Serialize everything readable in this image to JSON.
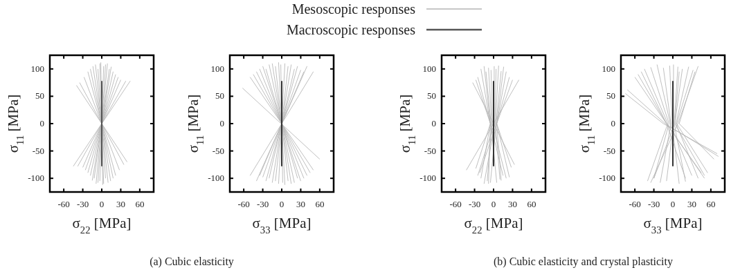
{
  "chart_data": [
    {
      "type": "line",
      "xlabel": "σ$_{22}$ [MPa]",
      "ylabel": "σ$_{11}$ [MPa]",
      "xlim": [
        -82,
        82
      ],
      "ylim": [
        -125,
        125
      ],
      "xticks": [
        -60,
        -30,
        0,
        30,
        60
      ],
      "yticks": [
        -100,
        -50,
        0,
        50,
        100
      ],
      "grid": false,
      "legend": "top",
      "annotations": [
        "(a) Cubic elasticity"
      ],
      "series": [
        {
          "name": "Mesoscopic responses",
          "color": "#b4b4b4",
          "x": [
            35,
            -35
          ],
          "values": [
            -75,
            75
          ]
        },
        {
          "color": "#b4b4b4",
          "x": [
            28,
            -28
          ],
          "values": [
            -85,
            85
          ]
        },
        {
          "color": "#b4b4b4",
          "x": [
            22,
            -22
          ],
          "values": [
            -95,
            95
          ]
        },
        {
          "color": "#b4b4b4",
          "x": [
            18,
            -18
          ],
          "values": [
            -100,
            100
          ]
        },
        {
          "color": "#b4b4b4",
          "x": [
            14,
            -14
          ],
          "values": [
            -105,
            105
          ]
        },
        {
          "color": "#b4b4b4",
          "x": [
            10,
            -10
          ],
          "values": [
            -108,
            108
          ]
        },
        {
          "color": "#b4b4b4",
          "x": [
            6,
            -6
          ],
          "values": [
            -100,
            100
          ]
        },
        {
          "color": "#b4b4b4",
          "x": [
            3,
            -3
          ],
          "values": [
            -110,
            110
          ]
        },
        {
          "color": "#b4b4b4",
          "x": [
            1.5,
            -1.5
          ],
          "values": [
            -112,
            112
          ]
        },
        {
          "color": "#b4b4b4",
          "x": [
            -3,
            3
          ],
          "values": [
            -105,
            105
          ]
        },
        {
          "color": "#b4b4b4",
          "x": [
            -6,
            6
          ],
          "values": [
            -108,
            108
          ]
        },
        {
          "color": "#b4b4b4",
          "x": [
            -9,
            9
          ],
          "values": [
            -110,
            110
          ]
        },
        {
          "color": "#b4b4b4",
          "x": [
            -12,
            12
          ],
          "values": [
            -100,
            100
          ]
        },
        {
          "color": "#b4b4b4",
          "x": [
            -15,
            15
          ],
          "values": [
            -104,
            104
          ]
        },
        {
          "color": "#b4b4b4",
          "x": [
            -18,
            18
          ],
          "values": [
            -95,
            95
          ]
        },
        {
          "color": "#b4b4b4",
          "x": [
            -22,
            22
          ],
          "values": [
            -90,
            90
          ]
        },
        {
          "color": "#b4b4b4",
          "x": [
            -26,
            26
          ],
          "values": [
            -85,
            85
          ]
        },
        {
          "color": "#b4b4b4",
          "x": [
            -30,
            30
          ],
          "values": [
            -80,
            80
          ]
        },
        {
          "color": "#b4b4b4",
          "x": [
            -38,
            38
          ],
          "values": [
            -78,
            78
          ]
        },
        {
          "color": "#b4b4b4",
          "x": [
            -45,
            45
          ],
          "values": [
            -78,
            78
          ]
        },
        {
          "color": "#b4b4b4",
          "x": [
            40,
            -40
          ],
          "values": [
            -70,
            70
          ]
        },
        {
          "name": "Macroscopic responses",
          "color": "#555555",
          "x": [
            0,
            0
          ],
          "values": [
            -78,
            78
          ]
        }
      ]
    },
    {
      "type": "line",
      "xlabel": "σ$_{33}$ [MPa]",
      "ylabel": "σ$_{11}$ [MPa]",
      "xlim": [
        -82,
        82
      ],
      "ylim": [
        -125,
        125
      ],
      "xticks": [
        -60,
        -30,
        0,
        30,
        60
      ],
      "yticks": [
        -100,
        -50,
        0,
        50,
        100
      ],
      "grid": false,
      "legend": false,
      "series": [
        {
          "color": "#b4b4b4",
          "x": [
            -62,
            60
          ],
          "values": [
            65,
            -65
          ]
        },
        {
          "color": "#b4b4b4",
          "x": [
            -50,
            50
          ],
          "values": [
            85,
            -85
          ]
        },
        {
          "color": "#b4b4b4",
          "x": [
            -45,
            45
          ],
          "values": [
            90,
            -90
          ]
        },
        {
          "color": "#b4b4b4",
          "x": [
            -40,
            40
          ],
          "values": [
            95,
            -95
          ]
        },
        {
          "color": "#b4b4b4",
          "x": [
            -35,
            35
          ],
          "values": [
            100,
            -100
          ]
        },
        {
          "color": "#b4b4b4",
          "x": [
            -30,
            30
          ],
          "values": [
            105,
            -105
          ]
        },
        {
          "color": "#b4b4b4",
          "x": [
            -25,
            25
          ],
          "values": [
            100,
            -100
          ]
        },
        {
          "color": "#b4b4b4",
          "x": [
            -20,
            20
          ],
          "values": [
            108,
            -108
          ]
        },
        {
          "color": "#b4b4b4",
          "x": [
            -15,
            15
          ],
          "values": [
            110,
            -110
          ]
        },
        {
          "color": "#b4b4b4",
          "x": [
            -10,
            10
          ],
          "values": [
            105,
            -105
          ]
        },
        {
          "color": "#b4b4b4",
          "x": [
            -5,
            5
          ],
          "values": [
            112,
            -112
          ]
        },
        {
          "color": "#b4b4b4",
          "x": [
            -1.5,
            1.5
          ],
          "values": [
            108,
            -108
          ]
        },
        {
          "color": "#b4b4b4",
          "x": [
            5,
            -5
          ],
          "values": [
            110,
            -110
          ]
        },
        {
          "color": "#b4b4b4",
          "x": [
            10,
            -10
          ],
          "values": [
            105,
            -105
          ]
        },
        {
          "color": "#b4b4b4",
          "x": [
            15,
            -15
          ],
          "values": [
            108,
            -108
          ]
        },
        {
          "color": "#b4b4b4",
          "x": [
            20,
            -20
          ],
          "values": [
            100,
            -100
          ]
        },
        {
          "color": "#b4b4b4",
          "x": [
            25,
            -25
          ],
          "values": [
            105,
            -105
          ]
        },
        {
          "color": "#b4b4b4",
          "x": [
            30,
            -30
          ],
          "values": [
            98,
            -98
          ]
        },
        {
          "color": "#b4b4b4",
          "x": [
            35,
            -35
          ],
          "values": [
            95,
            -95
          ]
        },
        {
          "color": "#b4b4b4",
          "x": [
            40,
            -40
          ],
          "values": [
            105,
            -105
          ]
        },
        {
          "color": "#b4b4b4",
          "x": [
            50,
            -50
          ],
          "values": [
            95,
            -95
          ]
        },
        {
          "color": "#333333",
          "x": [
            0,
            0
          ],
          "values": [
            -78,
            78
          ]
        }
      ]
    },
    {
      "type": "line",
      "xlabel": "σ$_{22}$ [MPa]",
      "ylabel": "σ$_{11}$ [MPa]",
      "xlim": [
        -82,
        82
      ],
      "ylim": [
        -125,
        125
      ],
      "xticks": [
        -60,
        -30,
        0,
        30,
        60
      ],
      "yticks": [
        -100,
        -50,
        0,
        50,
        100
      ],
      "grid": false,
      "legend": false,
      "annotations": [
        "(b) Cubic elasticity and crystal plasticity"
      ],
      "series": [
        {
          "color": "#b4b4b4",
          "x": [
            -33,
            0,
            33
          ],
          "values": [
            75,
            0,
            -75
          ]
        },
        {
          "color": "#b4b4b4",
          "x": [
            40,
            0,
            -43
          ],
          "values": [
            80,
            0,
            -85
          ]
        },
        {
          "color": "#b4b4b4",
          "x": [
            -20,
            -5,
            15
          ],
          "values": [
            100,
            0,
            -95
          ]
        },
        {
          "color": "#b4b4b4",
          "x": [
            -15,
            -5,
            -20
          ],
          "values": [
            105,
            0,
            -100
          ]
        },
        {
          "color": "#b4b4b4",
          "x": [
            -12,
            -4,
            5
          ],
          "values": [
            95,
            0,
            -108
          ]
        },
        {
          "color": "#b4b4b4",
          "x": [
            -8,
            -3,
            -10
          ],
          "values": [
            102,
            0,
            -105
          ]
        },
        {
          "color": "#b4b4b4",
          "x": [
            -4,
            -2,
            20
          ],
          "values": [
            98,
            0,
            -100
          ]
        },
        {
          "color": "#b4b4b4",
          "x": [
            1,
            1,
            -25
          ],
          "values": [
            105,
            0,
            -95
          ]
        },
        {
          "color": "#b4b4b4",
          "x": [
            4,
            2,
            -15
          ],
          "values": [
            100,
            0,
            -110
          ]
        },
        {
          "color": "#b4b4b4",
          "x": [
            8,
            3,
            10
          ],
          "values": [
            106,
            0,
            -102
          ]
        },
        {
          "color": "#b4b4b4",
          "x": [
            12,
            4,
            -5
          ],
          "values": [
            96,
            0,
            -108
          ]
        },
        {
          "color": "#b4b4b4",
          "x": [
            16,
            5,
            25
          ],
          "values": [
            104,
            0,
            -98
          ]
        },
        {
          "color": "#b4b4b4",
          "x": [
            20,
            5,
            -22
          ],
          "values": [
            95,
            0,
            -90
          ]
        },
        {
          "color": "#b4b4b4",
          "x": [
            25,
            5,
            28
          ],
          "values": [
            85,
            0,
            -80
          ]
        },
        {
          "color": "#b4b4b4",
          "x": [
            -25,
            -5,
            -28
          ],
          "values": [
            85,
            0,
            -82
          ]
        },
        {
          "color": "#b4b4b4",
          "x": [
            30,
            5,
            12
          ],
          "values": [
            80,
            0,
            -104
          ]
        },
        {
          "color": "#b4b4b4",
          "x": [
            -28,
            -5,
            -8
          ],
          "values": [
            80,
            0,
            -110
          ]
        },
        {
          "color": "#333333",
          "x": [
            0,
            0
          ],
          "values": [
            -78,
            78
          ]
        }
      ]
    },
    {
      "type": "line",
      "xlabel": "σ$_{33}$ [MPa]",
      "ylabel": "σ$_{11}$ [MPa]",
      "xlim": [
        -82,
        82
      ],
      "ylim": [
        -125,
        125
      ],
      "xticks": [
        -60,
        -30,
        0,
        30,
        60
      ],
      "yticks": [
        -100,
        -50,
        0,
        50,
        100
      ],
      "grid": false,
      "legend": false,
      "series": [
        {
          "color": "#b4b4b4",
          "x": [
            -75,
            -15,
            70
          ],
          "values": [
            55,
            0,
            -55
          ]
        },
        {
          "color": "#b4b4b4",
          "x": [
            -72,
            -12,
            72
          ],
          "values": [
            62,
            0,
            -60
          ]
        },
        {
          "color": "#b4b4b4",
          "x": [
            -55,
            -10,
            45
          ],
          "values": [
            90,
            0,
            -90
          ]
        },
        {
          "color": "#b4b4b4",
          "x": [
            -50,
            -10,
            50
          ],
          "values": [
            95,
            0,
            -100
          ]
        },
        {
          "color": "#b4b4b4",
          "x": [
            -45,
            -8,
            -40
          ],
          "values": [
            100,
            0,
            -105
          ]
        },
        {
          "color": "#b4b4b4",
          "x": [
            -35,
            -6,
            -30
          ],
          "values": [
            103,
            0,
            -100
          ]
        },
        {
          "color": "#b4b4b4",
          "x": [
            -25,
            -4,
            30
          ],
          "values": [
            108,
            0,
            -95
          ]
        },
        {
          "color": "#b4b4b4",
          "x": [
            -15,
            -3,
            -20
          ],
          "values": [
            102,
            0,
            -108
          ]
        },
        {
          "color": "#b4b4b4",
          "x": [
            -5,
            -1,
            10
          ],
          "values": [
            106,
            0,
            -110
          ]
        },
        {
          "color": "#b4b4b4",
          "x": [
            1,
            1,
            -10
          ],
          "values": [
            108,
            0,
            -105
          ]
        },
        {
          "color": "#b4b4b4",
          "x": [
            8,
            2,
            20
          ],
          "values": [
            104,
            0,
            -106
          ]
        },
        {
          "color": "#b4b4b4",
          "x": [
            15,
            3,
            -30
          ],
          "values": [
            100,
            0,
            -100
          ]
        },
        {
          "color": "#b4b4b4",
          "x": [
            25,
            5,
            40
          ],
          "values": [
            104,
            0,
            -100
          ]
        },
        {
          "color": "#b4b4b4",
          "x": [
            32,
            6,
            55
          ],
          "values": [
            98,
            0,
            -90
          ]
        },
        {
          "color": "#b4b4b4",
          "x": [
            40,
            8,
            -35
          ],
          "values": [
            105,
            0,
            -108
          ]
        },
        {
          "color": "#b4b4b4",
          "x": [
            35,
            10,
            65
          ],
          "values": [
            95,
            0,
            -65
          ]
        },
        {
          "color": "#b4b4b4",
          "x": [
            -60,
            -10,
            20
          ],
          "values": [
            85,
            0,
            -100
          ]
        },
        {
          "color": "#b4b4b4",
          "x": [
            10,
            3,
            50
          ],
          "values": [
            95,
            0,
            -95
          ]
        },
        {
          "color": "#333333",
          "x": [
            0,
            0
          ],
          "values": [
            -78,
            78
          ]
        }
      ]
    }
  ]
}
